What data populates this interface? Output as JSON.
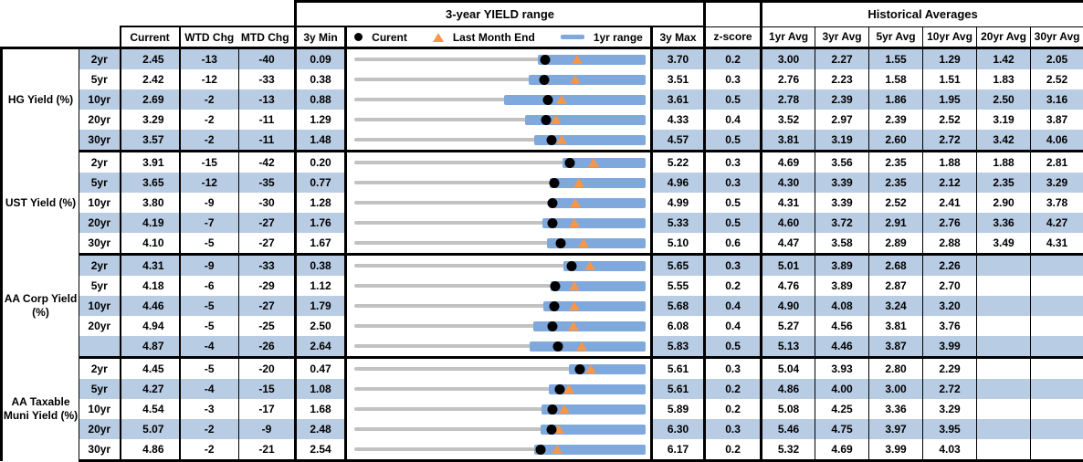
{
  "header": {
    "chart_range_title": "3-year YIELD range",
    "hist_title": "Historical Averages",
    "col_current": "Current",
    "col_wtd": "WTD Chg",
    "col_mtd": "MTD Chg",
    "col_min": "3y Min",
    "col_max": "3y Max",
    "col_z": "z-score",
    "avg_cols": [
      "1yr Avg",
      "3yr Avg",
      "5yr Avg",
      "10yr Avg",
      "20yr Avg",
      "30yr Avg"
    ],
    "legend": {
      "current_label": "Curent",
      "last_month_label": "Last Month End",
      "range_label": "1yr range"
    }
  },
  "colors": {
    "row_shade": "#b8cce4",
    "range_bar": "#7fa8dc",
    "full_range_track": "#c2c2c2",
    "current_dot": "#000000",
    "last_month_triangle": "#f79646",
    "border": "#000000"
  },
  "chart_data": {
    "type": "table",
    "note": "Each row also renders a bullet chart: gray track = 3y min..max range, blue bar = 1yr range, black dot = current, orange triangle = last month end (current - MTD chg).",
    "sections": [
      {
        "label": "HG Yield (%)",
        "rows": [
          {
            "tenor": "2yr",
            "current": "2.45",
            "wtd": "-13",
            "mtd": "-40",
            "min": "0.09",
            "max": "3.70",
            "z": "0.2",
            "avgs": [
              "3.00",
              "2.27",
              "1.55",
              "1.29",
              "1.42",
              "2.05"
            ],
            "lme": 2.85,
            "r1lo": 2.37,
            "r1hi": 3.7
          },
          {
            "tenor": "5yr",
            "current": "2.42",
            "wtd": "-12",
            "mtd": "-33",
            "min": "0.38",
            "max": "3.51",
            "z": "0.3",
            "avgs": [
              "2.76",
              "2.23",
              "1.58",
              "1.51",
              "1.83",
              "2.52"
            ],
            "lme": 2.75,
            "r1lo": 2.25,
            "r1hi": 3.51
          },
          {
            "tenor": "10yr",
            "current": "2.69",
            "wtd": "-2",
            "mtd": "-13",
            "min": "0.88",
            "max": "3.61",
            "z": "0.5",
            "avgs": [
              "2.78",
              "2.39",
              "1.86",
              "1.95",
              "2.50",
              "3.16"
            ],
            "lme": 2.82,
            "r1lo": 2.28,
            "r1hi": 3.61
          },
          {
            "tenor": "20yr",
            "current": "3.29",
            "wtd": "-2",
            "mtd": "-11",
            "min": "1.29",
            "max": "4.33",
            "z": "0.4",
            "avgs": [
              "3.52",
              "2.97",
              "2.39",
              "2.52",
              "3.19",
              "3.87"
            ],
            "lme": 3.4,
            "r1lo": 3.07,
            "r1hi": 4.33
          },
          {
            "tenor": "30yr",
            "current": "3.57",
            "wtd": "-2",
            "mtd": "-11",
            "min": "1.48",
            "max": "4.57",
            "z": "0.5",
            "avgs": [
              "3.81",
              "3.19",
              "2.60",
              "2.72",
              "3.42",
              "4.06"
            ],
            "lme": 3.68,
            "r1lo": 3.39,
            "r1hi": 4.57
          }
        ]
      },
      {
        "label": "UST Yield (%)",
        "rows": [
          {
            "tenor": "2yr",
            "current": "3.91",
            "wtd": "-15",
            "mtd": "-42",
            "min": "0.20",
            "max": "5.22",
            "z": "0.3",
            "avgs": [
              "4.69",
              "3.56",
              "2.35",
              "1.88",
              "1.88",
              "2.81"
            ],
            "lme": 4.33,
            "r1lo": 3.78,
            "r1hi": 5.22
          },
          {
            "tenor": "5yr",
            "current": "3.65",
            "wtd": "-12",
            "mtd": "-35",
            "min": "0.77",
            "max": "4.96",
            "z": "0.3",
            "avgs": [
              "4.30",
              "3.39",
              "2.35",
              "2.12",
              "2.35",
              "3.29"
            ],
            "lme": 4.0,
            "r1lo": 3.58,
            "r1hi": 4.96
          },
          {
            "tenor": "10yr",
            "current": "3.80",
            "wtd": "-9",
            "mtd": "-30",
            "min": "1.28",
            "max": "4.99",
            "z": "0.5",
            "avgs": [
              "4.31",
              "3.39",
              "2.52",
              "2.41",
              "2.90",
              "3.78"
            ],
            "lme": 4.1,
            "r1lo": 3.77,
            "r1hi": 4.99
          },
          {
            "tenor": "20yr",
            "current": "4.19",
            "wtd": "-7",
            "mtd": "-27",
            "min": "1.76",
            "max": "5.33",
            "z": "0.5",
            "avgs": [
              "4.60",
              "3.72",
              "2.91",
              "2.76",
              "3.36",
              "4.27"
            ],
            "lme": 4.46,
            "r1lo": 4.07,
            "r1hi": 5.33
          },
          {
            "tenor": "30yr",
            "current": "4.10",
            "wtd": "-5",
            "mtd": "-27",
            "min": "1.67",
            "max": "5.10",
            "z": "0.6",
            "avgs": [
              "4.47",
              "3.58",
              "2.89",
              "2.88",
              "3.49",
              "4.31"
            ],
            "lme": 4.37,
            "r1lo": 3.94,
            "r1hi": 5.1
          }
        ]
      },
      {
        "label": "AA Corp Yield (%)",
        "rows": [
          {
            "tenor": "2yr",
            "current": "4.31",
            "wtd": "-9",
            "mtd": "-33",
            "min": "0.38",
            "max": "5.65",
            "z": "0.3",
            "avgs": [
              "5.01",
              "3.89",
              "2.68",
              "2.26",
              "",
              ""
            ],
            "lme": 4.64,
            "r1lo": 4.17,
            "r1hi": 5.65
          },
          {
            "tenor": "5yr",
            "current": "4.18",
            "wtd": "-6",
            "mtd": "-29",
            "min": "1.12",
            "max": "5.55",
            "z": "0.2",
            "avgs": [
              "4.76",
              "3.89",
              "2.87",
              "2.70",
              "",
              ""
            ],
            "lme": 4.47,
            "r1lo": 4.11,
            "r1hi": 5.55
          },
          {
            "tenor": "10yr",
            "current": "4.46",
            "wtd": "-5",
            "mtd": "-27",
            "min": "1.79",
            "max": "5.68",
            "z": "0.4",
            "avgs": [
              "4.90",
              "4.08",
              "3.24",
              "3.20",
              "",
              ""
            ],
            "lme": 4.73,
            "r1lo": 4.31,
            "r1hi": 5.68
          },
          {
            "tenor": "20yr",
            "current": "4.94",
            "wtd": "-5",
            "mtd": "-25",
            "min": "2.50",
            "max": "6.08",
            "z": "0.4",
            "avgs": [
              "5.27",
              "4.56",
              "3.81",
              "3.76",
              "",
              ""
            ],
            "lme": 5.19,
            "r1lo": 4.7,
            "r1hi": 6.08
          },
          {
            "tenor": "",
            "current": "4.87",
            "wtd": "-4",
            "mtd": "-26",
            "min": "2.64",
            "max": "5.83",
            "z": "0.5",
            "avgs": [
              "5.13",
              "4.46",
              "3.87",
              "3.99",
              "",
              ""
            ],
            "lme": 5.13,
            "r1lo": 4.56,
            "r1hi": 5.83
          }
        ]
      },
      {
        "label": "AA Taxable Muni Yield (%)",
        "rows": [
          {
            "tenor": "2yr",
            "current": "4.45",
            "wtd": "-5",
            "mtd": "-20",
            "min": "0.47",
            "max": "5.61",
            "z": "0.3",
            "avgs": [
              "5.04",
              "3.93",
              "2.80",
              "2.29",
              "",
              ""
            ],
            "lme": 4.65,
            "r1lo": 4.25,
            "r1hi": 5.61
          },
          {
            "tenor": "5yr",
            "current": "4.27",
            "wtd": "-4",
            "mtd": "-15",
            "min": "1.08",
            "max": "5.61",
            "z": "0.2",
            "avgs": [
              "4.86",
              "4.00",
              "3.00",
              "2.72",
              "",
              ""
            ],
            "lme": 4.42,
            "r1lo": 4.11,
            "r1hi": 5.61
          },
          {
            "tenor": "10yr",
            "current": "4.54",
            "wtd": "-3",
            "mtd": "-17",
            "min": "1.68",
            "max": "5.89",
            "z": "0.2",
            "avgs": [
              "5.08",
              "4.25",
              "3.36",
              "3.29",
              "",
              ""
            ],
            "lme": 4.71,
            "r1lo": 4.39,
            "r1hi": 5.89
          },
          {
            "tenor": "20yr",
            "current": "5.07",
            "wtd": "-2",
            "mtd": "-9",
            "min": "2.48",
            "max": "6.30",
            "z": "0.3",
            "avgs": [
              "5.46",
              "4.75",
              "3.97",
              "3.95",
              "",
              ""
            ],
            "lme": 5.16,
            "r1lo": 4.92,
            "r1hi": 6.3
          },
          {
            "tenor": "30yr",
            "current": "4.86",
            "wtd": "-2",
            "mtd": "-21",
            "min": "2.54",
            "max": "6.17",
            "z": "0.2",
            "avgs": [
              "5.32",
              "4.69",
              "3.99",
              "4.03",
              "",
              ""
            ],
            "lme": 5.07,
            "r1lo": 4.78,
            "r1hi": 6.17
          }
        ]
      }
    ]
  }
}
